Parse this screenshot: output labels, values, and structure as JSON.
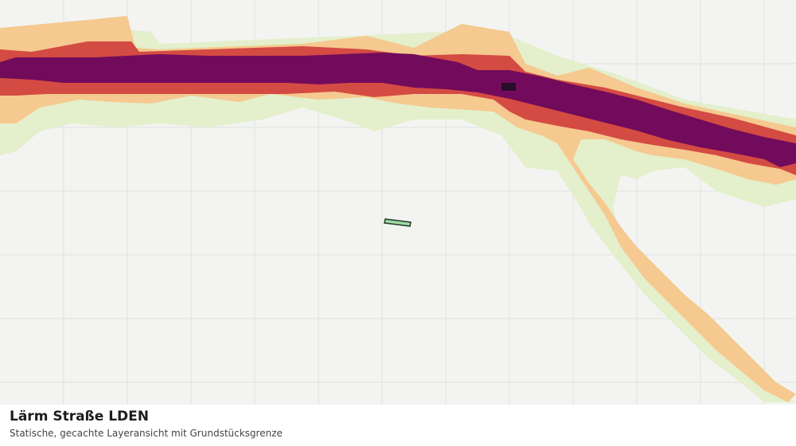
{
  "map": {
    "title": "Lärm Straße LDEN",
    "subtitle": "Statische, gecachte Layeransicht mit Grundstücksgrenze",
    "layer": "noise-road-lden",
    "colors": {
      "background": "#f3f4f2",
      "grid": "#dfe2de",
      "class_low": "#e4efcb",
      "class_mid": "#f5c98f",
      "class_high": "#d44b43",
      "class_very_high": "#730b5c",
      "class_max": "#2a0d2b",
      "parcel_fill": "#9fd8a3",
      "parcel_stroke": "#1f3a23"
    }
  }
}
